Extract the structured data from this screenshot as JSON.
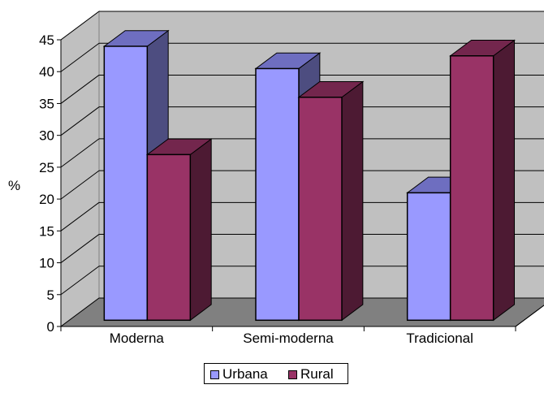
{
  "chart_data": {
    "type": "bar",
    "style": "3d-clustered-column",
    "categories": [
      "Moderna",
      "Semi-moderna",
      "Tradicional"
    ],
    "series": [
      {
        "name": "Urbana",
        "values": [
          43,
          39.5,
          20
        ]
      },
      {
        "name": "Rural",
        "values": [
          26,
          35,
          41.5
        ]
      }
    ],
    "title": "",
    "xlabel": "",
    "ylabel": "%",
    "ylim": [
      0,
      45
    ],
    "yticks": [
      0,
      5,
      10,
      15,
      20,
      25,
      30,
      35,
      40,
      45
    ],
    "grid": true,
    "legend_position": "bottom"
  },
  "colors": {
    "urbana_front": "#9999ff",
    "urbana_side": "#4d4d80",
    "urbana_top": "#6e6ec0",
    "rural_front": "#993366",
    "rural_side": "#4d1a33",
    "rural_top": "#73264d",
    "wall": "#c0c0c0",
    "floor": "#808080"
  }
}
